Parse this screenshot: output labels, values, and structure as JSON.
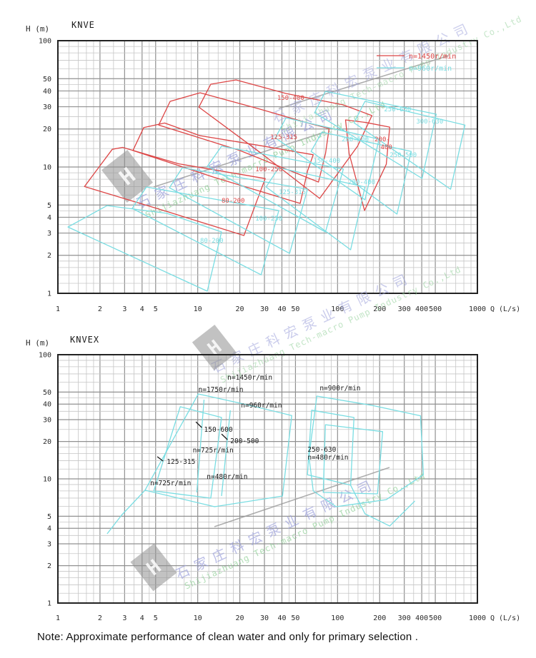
{
  "note": "Note: Approximate performance of clean water and only for primary selection .",
  "watermark": {
    "cn": "石家庄科宏泵业有限公司",
    "en": "Shijiazhuang Tech-macro Pump Industry Co.,Ltd",
    "logo_letter": "H"
  },
  "colors": {
    "red": "#dd4646",
    "cyan": "#79dde2",
    "grid_minor": "#c6c6c6",
    "grid_major": "#909090",
    "border": "#222222",
    "tick_text": "#2a2a2a",
    "black_label": "#1a1a1a",
    "wm_cn": "#9fa3dc",
    "wm_en": "#8fcf96",
    "wm_gray": "#9a9a9a",
    "logo_gray": "#8f8f8f"
  },
  "chart_data": [
    {
      "type": "line",
      "title": "KNVE",
      "xlabel": "Q (L/s)",
      "ylabel": "H (m)",
      "xscale": "log",
      "yscale": "log",
      "xlim": [
        1,
        1000
      ],
      "ylim": [
        1,
        100
      ],
      "xticks": [
        1,
        2,
        3,
        4,
        5,
        10,
        20,
        30,
        40,
        50,
        100,
        200,
        300,
        400,
        500,
        1000
      ],
      "yticks": [
        1,
        2,
        3,
        4,
        5,
        10,
        20,
        30,
        40,
        50,
        100
      ],
      "grid": true,
      "legend_position": "top-right",
      "legend": [
        {
          "label": "n=1450r/min",
          "color": "#dd4646"
        },
        {
          "label": "n=960r/min",
          "color": "#79dde2"
        }
      ],
      "series": [
        {
          "name": "80-200 n=1450",
          "color": "#dd4646",
          "closed": true,
          "points": [
            [
              2.45,
              13.8
            ],
            [
              2.9,
              14.3
            ],
            [
              7.3,
              10.6
            ],
            [
              30.4,
              8.1
            ],
            [
              21.4,
              2.87
            ],
            [
              5.8,
              4.5
            ],
            [
              1.55,
              7.0
            ]
          ]
        },
        {
          "name": "100-250 n=1450",
          "color": "#dd4646",
          "closed": true,
          "points": [
            [
              4.11,
              20.5
            ],
            [
              5.8,
              22.3
            ],
            [
              10.4,
              17.7
            ],
            [
              26.7,
              14.9
            ],
            [
              67,
              12.5
            ],
            [
              61,
              9.3
            ],
            [
              54,
              5.15
            ],
            [
              13,
              8.3
            ],
            [
              3.44,
              13.5
            ]
          ]
        },
        {
          "name": "125-315 n=1450",
          "color": "#dd4646",
          "closed": true,
          "points": [
            [
              6.35,
              33.1
            ],
            [
              10.4,
              38.7
            ],
            [
              26.7,
              29.1
            ],
            [
              63,
              22.1
            ],
            [
              87,
              20.2
            ],
            [
              82,
              12.8
            ],
            [
              73,
              7.6
            ],
            [
              20,
              13.5
            ],
            [
              5.26,
              21.5
            ]
          ]
        },
        {
          "name": "150-400 n=1450",
          "color": "#dd4646",
          "closed": true,
          "points": [
            [
              12.4,
              45.2
            ],
            [
              18.8,
              48.9
            ],
            [
              42.8,
              38.2
            ],
            [
              110,
              31
            ],
            [
              176,
              25.5
            ],
            [
              139,
              14.6
            ],
            [
              74.5,
              5.64
            ],
            [
              28,
              13
            ],
            [
              10.2,
              29.8
            ]
          ]
        },
        {
          "name": "200-400 n=1450",
          "color": "#dd4646",
          "closed": true,
          "points": [
            [
              114,
              23.6
            ],
            [
              160,
              22.5
            ],
            [
              236,
              20.7
            ],
            [
              223,
              10.5
            ],
            [
              156,
              4.52
            ],
            [
              121,
              12.8
            ]
          ]
        },
        {
          "name": "80-200 n=960",
          "color": "#79dde2",
          "closed": true,
          "points": [
            [
              2.25,
              4.95
            ],
            [
              6,
              4.3
            ],
            [
              14.8,
              3.06
            ],
            [
              11.7,
              1.04
            ],
            [
              1.18,
              3.35
            ]
          ]
        },
        {
          "name": "100-250 n=960",
          "color": "#79dde2",
          "closed": true,
          "points": [
            [
              4.3,
              6.95
            ],
            [
              38,
              4.52
            ],
            [
              28.4,
              1.4
            ],
            [
              3.4,
              4.7
            ]
          ]
        },
        {
          "name": "125-315 n=960",
          "color": "#79dde2",
          "closed": true,
          "points": [
            [
              7.76,
              9.87
            ],
            [
              61,
              6.67
            ],
            [
              45.4,
              2.07
            ],
            [
              6.28,
              6.85
            ]
          ]
        },
        {
          "name": "150-400 n=960",
          "color": "#79dde2",
          "closed": true,
          "points": [
            [
              14.8,
              14.6
            ],
            [
              110,
              9.63
            ],
            [
              81.9,
              3.06
            ],
            [
              11.7,
              10.1
            ]
          ]
        },
        {
          "name": "200-400 n=960",
          "color": "#79dde2",
          "closed": true,
          "points": [
            [
              38,
              9.87
            ],
            [
              157,
              6.95
            ],
            [
              124,
              2.21
            ],
            [
              30.8,
              6.95
            ]
          ]
        },
        {
          "name": "200-500 n=960",
          "color": "#79dde2",
          "closed": true,
          "points": [
            [
              42.8,
              24.5
            ],
            [
              198,
              16.6
            ],
            [
              157,
              5.5
            ],
            [
              35.9,
              17
            ]
          ]
        },
        {
          "name": "250-500 n=960",
          "color": "#79dde2",
          "closed": true,
          "points": [
            [
              77.3,
              18.9
            ],
            [
              336,
              13.3
            ],
            [
              266,
              4.24
            ],
            [
              64.7,
              13.3
            ]
          ]
        },
        {
          "name": "250-630 n=960",
          "color": "#79dde2",
          "closed": true,
          "points": [
            [
              81.8,
              39.7
            ],
            [
              508,
              26.2
            ],
            [
              402,
              8.12
            ],
            [
              68.6,
              26.9
            ]
          ]
        },
        {
          "name": "300-630 n=960",
          "color": "#79dde2",
          "closed": true,
          "points": [
            [
              157,
              33.1
            ],
            [
              815,
              21.5
            ],
            [
              643,
              6.67
            ],
            [
              131,
              22.4
            ]
          ]
        }
      ],
      "annotations": [
        {
          "text": "150-400",
          "q": 37,
          "h": 34,
          "color": "#dd4646"
        },
        {
          "text": "125-315",
          "q": 33,
          "h": 16.6,
          "color": "#dd4646"
        },
        {
          "text": "100-250",
          "q": 25.8,
          "h": 9.25,
          "color": "#dd4646"
        },
        {
          "text": "80-200",
          "q": 14.8,
          "h": 5.22,
          "color": "#dd4646"
        },
        {
          "text": "200-",
          "q": 184,
          "h": 16.0,
          "color": "#dd4646"
        },
        {
          "text": "400",
          "q": 203,
          "h": 13.8,
          "color": "#dd4646"
        },
        {
          "text": "150-400",
          "q": 67,
          "h": 10.8,
          "color": "#79dde2"
        },
        {
          "text": "200-400",
          "q": 119,
          "h": 7.3,
          "color": "#79dde2"
        },
        {
          "text": "200-500",
          "q": 107,
          "h": 16,
          "color": "#79dde2"
        },
        {
          "text": "250-500",
          "q": 236,
          "h": 12,
          "color": "#79dde2"
        },
        {
          "text": "250-630",
          "q": 215,
          "h": 27.6,
          "color": "#79dde2"
        },
        {
          "text": "300-630",
          "q": 365,
          "h": 22.1,
          "color": "#79dde2"
        },
        {
          "text": "125-315",
          "q": 38,
          "h": 6.1,
          "color": "#79dde2"
        },
        {
          "text": "100-250",
          "q": 25.8,
          "h": 3.77,
          "color": "#79dde2"
        },
        {
          "text": "80-200",
          "q": 10.4,
          "h": 2.52,
          "color": "#79dde2"
        }
      ]
    },
    {
      "type": "line",
      "title": "KNVEX",
      "xlabel": "Q (L/s)",
      "ylabel": "H (m)",
      "xscale": "log",
      "yscale": "log",
      "xlim": [
        1,
        1000
      ],
      "ylim": [
        1,
        100
      ],
      "xticks": [
        1,
        2,
        3,
        4,
        5,
        10,
        20,
        30,
        40,
        50,
        100,
        200,
        300,
        400,
        500,
        1000
      ],
      "yticks": [
        1,
        2,
        3,
        4,
        5,
        10,
        20,
        30,
        40,
        50,
        100
      ],
      "grid": true,
      "legend": [],
      "series": [
        {
          "name": "left-envelope-outer",
          "color": "#79dde2",
          "closed": true,
          "points": [
            [
              4.2,
              8.1
            ],
            [
              10.1,
              48.3
            ],
            [
              22.4,
              39.6
            ],
            [
              47,
              32.4
            ],
            [
              40.4,
              7.28
            ],
            [
              13.2,
              5.97
            ]
          ]
        },
        {
          "name": "left-envelope-125-315",
          "color": "#79dde2",
          "closed": true,
          "points": [
            [
              4.85,
              8.0
            ],
            [
              7.5,
              38.1
            ],
            [
              14.8,
              31.2
            ],
            [
              12.4,
              7.0
            ]
          ]
        },
        {
          "name": "left-divider-1",
          "color": "#79dde2",
          "closed": false,
          "points": [
            [
              17.1,
              35.6
            ],
            [
              14.8,
              7.28
            ]
          ]
        },
        {
          "name": "left-divider-2",
          "color": "#79dde2",
          "closed": false,
          "points": [
            [
              11.1,
              43.5
            ],
            [
              9.85,
              7.78
            ]
          ]
        },
        {
          "name": "left-tail",
          "color": "#79dde2",
          "closed": false,
          "points": [
            [
              4.2,
              8.1
            ],
            [
              2.85,
              5.09
            ],
            [
              2.25,
              3.61
            ]
          ]
        },
        {
          "name": "right-envelope-outer-250-630",
          "color": "#79dde2",
          "closed": true,
          "points": [
            [
              67,
              8.0
            ],
            [
              62.4,
              15.1
            ],
            [
              71.1,
              46.4
            ],
            [
              176,
              39.1
            ],
            [
              392,
              32.2
            ],
            [
              411,
              10.8
            ],
            [
              223,
              6.8
            ],
            [
              97.7,
              5.97
            ]
          ]
        },
        {
          "name": "right-envelope-inner-1",
          "color": "#79dde2",
          "closed": true,
          "points": [
            [
              60.9,
              10.8
            ],
            [
              65.3,
              35.7
            ],
            [
              131,
              31.2
            ],
            [
              124,
              8.9
            ]
          ]
        },
        {
          "name": "right-envelope-inner-2",
          "color": "#79dde2",
          "closed": true,
          "points": [
            [
              79,
              7.78
            ],
            [
              81.8,
              27.3
            ],
            [
              210,
              24
            ],
            [
              193,
              7.57
            ]
          ]
        },
        {
          "name": "right-tail",
          "color": "#79dde2",
          "closed": false,
          "points": [
            [
              124,
              8.9
            ],
            [
              157,
              5.23
            ],
            [
              236,
              4.17
            ],
            [
              357,
              6.64
            ]
          ]
        },
        {
          "name": "leader-150-600",
          "color": "#1a1a1a",
          "closed": false,
          "points": [
            [
              10.7,
              25.9
            ],
            [
              9.7,
              28.8
            ]
          ]
        },
        {
          "name": "leader-200-500",
          "color": "#1a1a1a",
          "closed": false,
          "points": [
            [
              16.3,
              20.7
            ],
            [
              14.8,
              23
            ]
          ]
        },
        {
          "name": "leader-125-315",
          "color": "#1a1a1a",
          "closed": false,
          "points": [
            [
              5.65,
              13.9
            ],
            [
              5.14,
              15.1
            ]
          ]
        }
      ],
      "annotations": [
        {
          "text": "n=1450r/min",
          "q": 16.3,
          "h": 63,
          "color": "#1a1a1a"
        },
        {
          "text": "n=1750r/min",
          "q": 10.1,
          "h": 50.2,
          "color": "#1a1a1a"
        },
        {
          "text": "n=960r/min",
          "q": 20.4,
          "h": 37.6,
          "color": "#1a1a1a"
        },
        {
          "text": "n=900r/min",
          "q": 74.5,
          "h": 51.6,
          "color": "#1a1a1a"
        },
        {
          "text": "150-600",
          "q": 11.1,
          "h": 24,
          "color": "#1a1a1a"
        },
        {
          "text": "200-500",
          "q": 17.1,
          "h": 19.4,
          "color": "#1a1a1a"
        },
        {
          "text": "n=725r/min",
          "q": 9.2,
          "h": 16.3,
          "color": "#1a1a1a"
        },
        {
          "text": "125-315",
          "q": 6.0,
          "h": 13.2,
          "color": "#1a1a1a"
        },
        {
          "text": "n=480r/min",
          "q": 11.6,
          "h": 10,
          "color": "#1a1a1a"
        },
        {
          "text": "n=725r/min",
          "q": 4.57,
          "h": 8.9,
          "color": "#1a1a1a"
        },
        {
          "text": "250-630",
          "q": 61,
          "h": 16.5,
          "color": "#1a1a1a"
        },
        {
          "text": "n=480r/min",
          "q": 61,
          "h": 14.3,
          "color": "#1a1a1a"
        }
      ]
    }
  ]
}
